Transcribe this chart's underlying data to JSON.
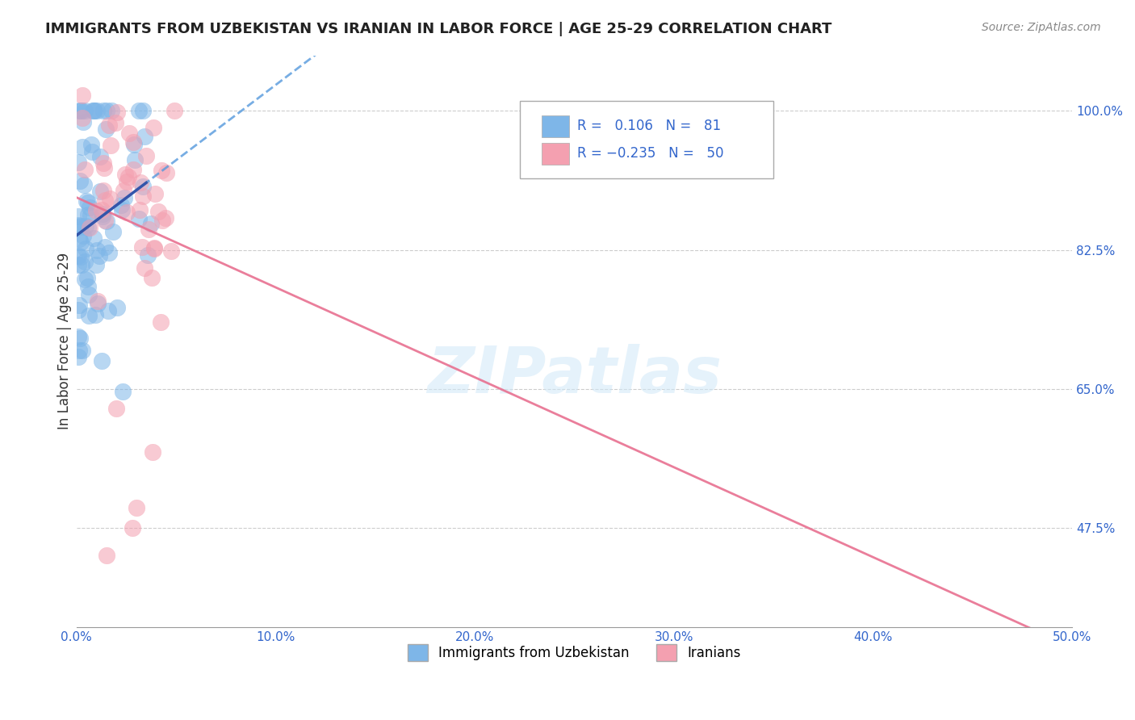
{
  "title": "IMMIGRANTS FROM UZBEKISTAN VS IRANIAN IN LABOR FORCE | AGE 25-29 CORRELATION CHART",
  "source": "Source: ZipAtlas.com",
  "ylabel": "In Labor Force | Age 25-29",
  "xlim": [
    0.0,
    0.5
  ],
  "ylim": [
    0.35,
    1.07
  ],
  "xticks": [
    0.0,
    0.1,
    0.2,
    0.3,
    0.4,
    0.5
  ],
  "xticklabels": [
    "0.0%",
    "10.0%",
    "20.0%",
    "30.0%",
    "40.0%",
    "50.0%"
  ],
  "yticks": [
    0.475,
    0.65,
    0.825,
    1.0
  ],
  "yticklabels": [
    "47.5%",
    "65.0%",
    "82.5%",
    "100.0%"
  ],
  "grid_color": "#cccccc",
  "background_color": "#ffffff",
  "uzbek_color": "#7EB6E8",
  "iran_color": "#F4A0B0",
  "uzbek_R": 0.106,
  "uzbek_N": 81,
  "iran_R": -0.235,
  "iran_N": 50,
  "legend_label_uzbek": "Immigrants from Uzbekistan",
  "legend_label_iran": "Iranians",
  "uzbek_trend_color": "#5599DD",
  "iran_trend_color": "#E87090",
  "uzbek_solid_color": "#3355AA",
  "watermark_color": "#D0E8F8",
  "title_color": "#222222",
  "source_color": "#888888",
  "tick_color": "#3366CC",
  "ylabel_color": "#333333"
}
